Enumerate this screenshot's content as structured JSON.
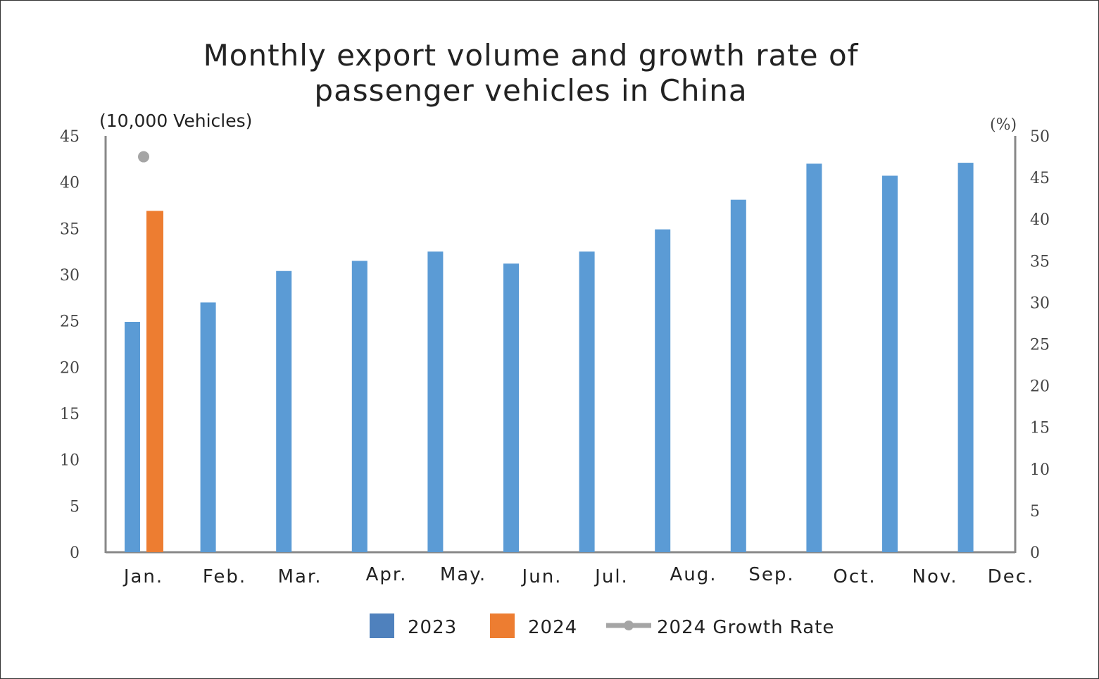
{
  "chart_data": {
    "type": "bar",
    "title_lines": [
      "Monthly export volume and growth rate of",
      "passenger vehicles in China"
    ],
    "ylabel": "(10,000 Vehicles)",
    "y2label": "(%)",
    "categories": [
      "Jan.",
      "Feb.",
      "Mar.",
      "Apr.",
      "May.",
      "Jun.",
      "Jul.",
      "Aug.",
      "Sep.",
      "Oct.",
      "Nov.",
      "Dec."
    ],
    "ylim": [
      0,
      45
    ],
    "yticks": [
      0,
      5,
      10,
      15,
      20,
      25,
      30,
      35,
      40,
      45
    ],
    "y2lim": [
      0,
      50
    ],
    "y2ticks": [
      0,
      5,
      10,
      15,
      20,
      25,
      30,
      35,
      40,
      45,
      50
    ],
    "grid": false,
    "legend_position": "bottom",
    "series": [
      {
        "name": "2023",
        "kind": "bar",
        "axis": "left",
        "color": "#5b9bd5",
        "values": [
          24.9,
          27.0,
          30.4,
          31.5,
          32.5,
          31.2,
          32.5,
          34.9,
          38.1,
          42.0,
          40.7,
          42.1
        ]
      },
      {
        "name": "2024",
        "kind": "bar",
        "axis": "left",
        "color": "#ed7d31",
        "values": [
          36.9,
          null,
          null,
          null,
          null,
          null,
          null,
          null,
          null,
          null,
          null,
          null
        ]
      },
      {
        "name": "2024 Growth Rate",
        "kind": "line",
        "axis": "right",
        "color": "#a5a5a5",
        "values": [
          47.5,
          null,
          null,
          null,
          null,
          null,
          null,
          null,
          null,
          null,
          null,
          null
        ]
      }
    ]
  }
}
